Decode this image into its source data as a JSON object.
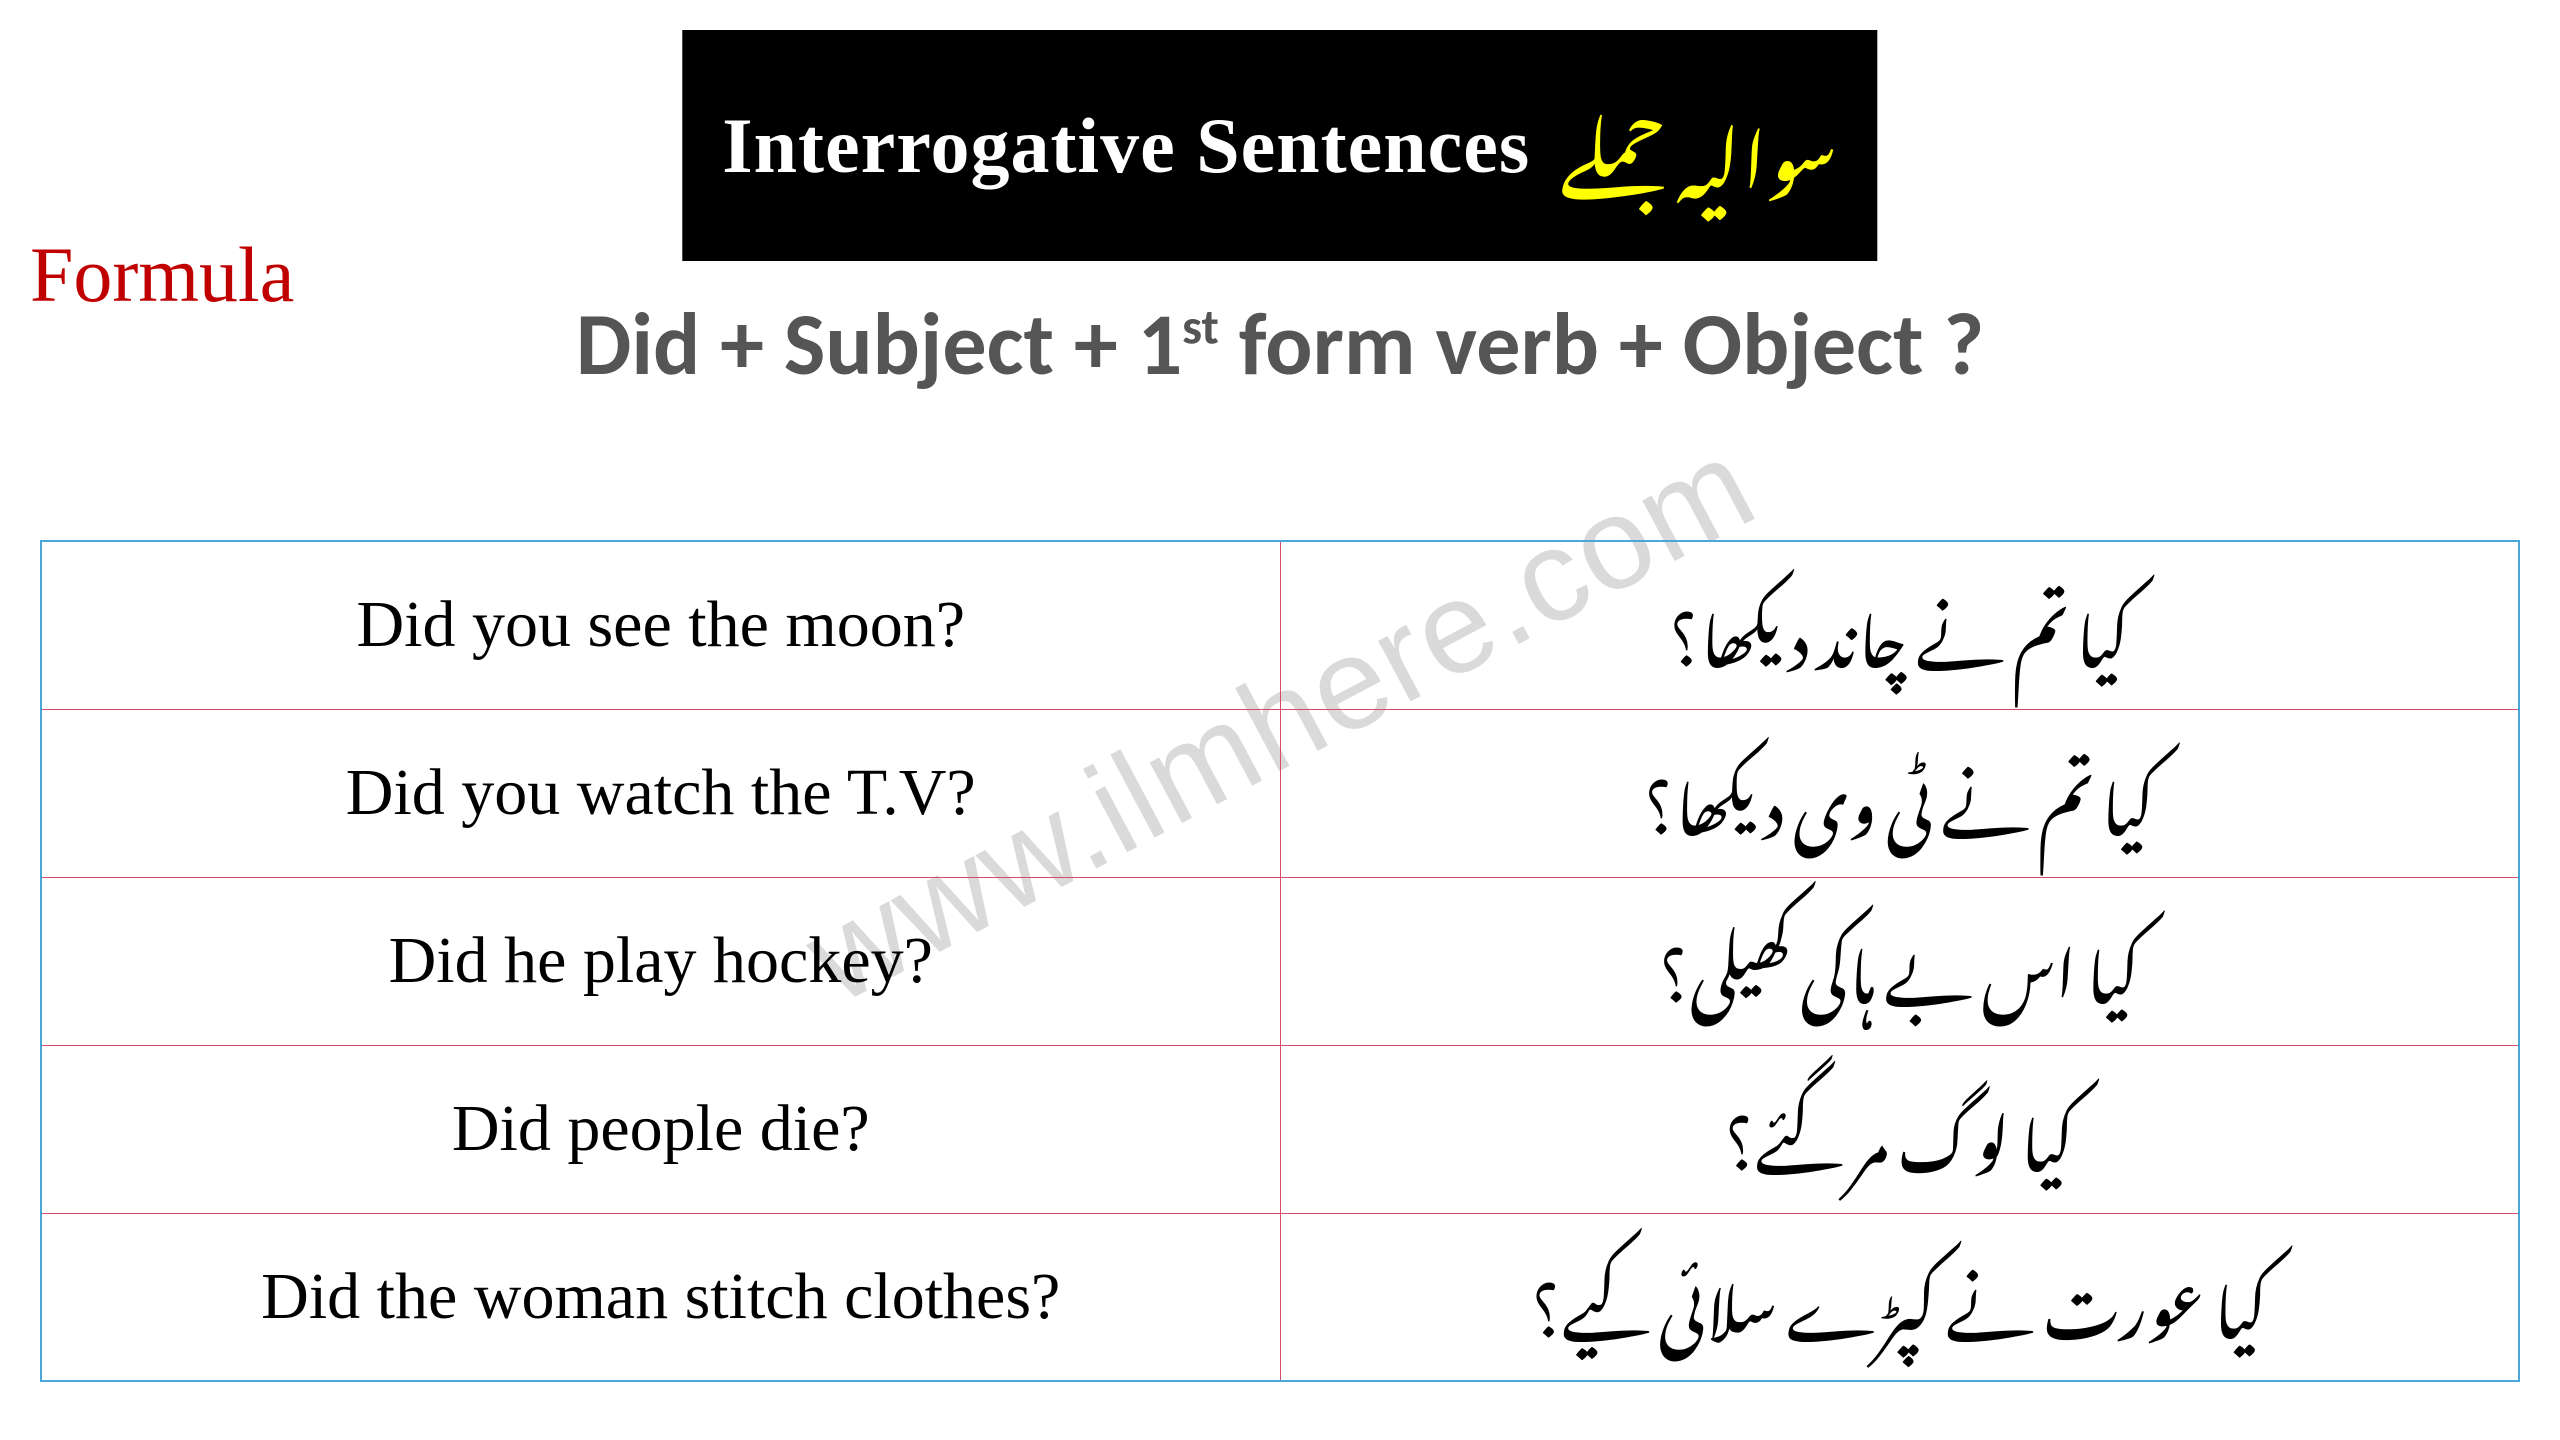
{
  "title": {
    "english": "Interrogative Sentences",
    "urdu": "سوالیہ جملے"
  },
  "formula": {
    "label": "Formula",
    "text_prefix": "Did + Subject + 1",
    "text_sup": "st",
    "text_suffix": " form verb + Object ?"
  },
  "watermark": "www.ilmhere.com",
  "examples": [
    {
      "english": "Did you see the moon?",
      "urdu": "کیا تم نے چاند دیکھا؟"
    },
    {
      "english": "Did you watch the T.V?",
      "urdu": "کیا تم نے ٹی وی دیکھا؟"
    },
    {
      "english": "Did he play hockey?",
      "urdu": "کیا اس بے ہاکی کھیلی؟"
    },
    {
      "english": "Did people die?",
      "urdu": "کیا لوگ مر گئے؟"
    },
    {
      "english": "Did the woman stitch clothes?",
      "urdu": "کیا عورت نے کپڑے سلائی کیے؟"
    }
  ],
  "colors": {
    "title_bg": "#000000",
    "title_english": "#ffffff",
    "title_urdu": "#ffff00",
    "formula_label": "#c00000",
    "formula_text": "#555555",
    "table_border": "#4aa8d8",
    "row_border": "#d84a6a",
    "watermark": "rgba(150,150,150,0.35)",
    "background": "#ffffff"
  }
}
